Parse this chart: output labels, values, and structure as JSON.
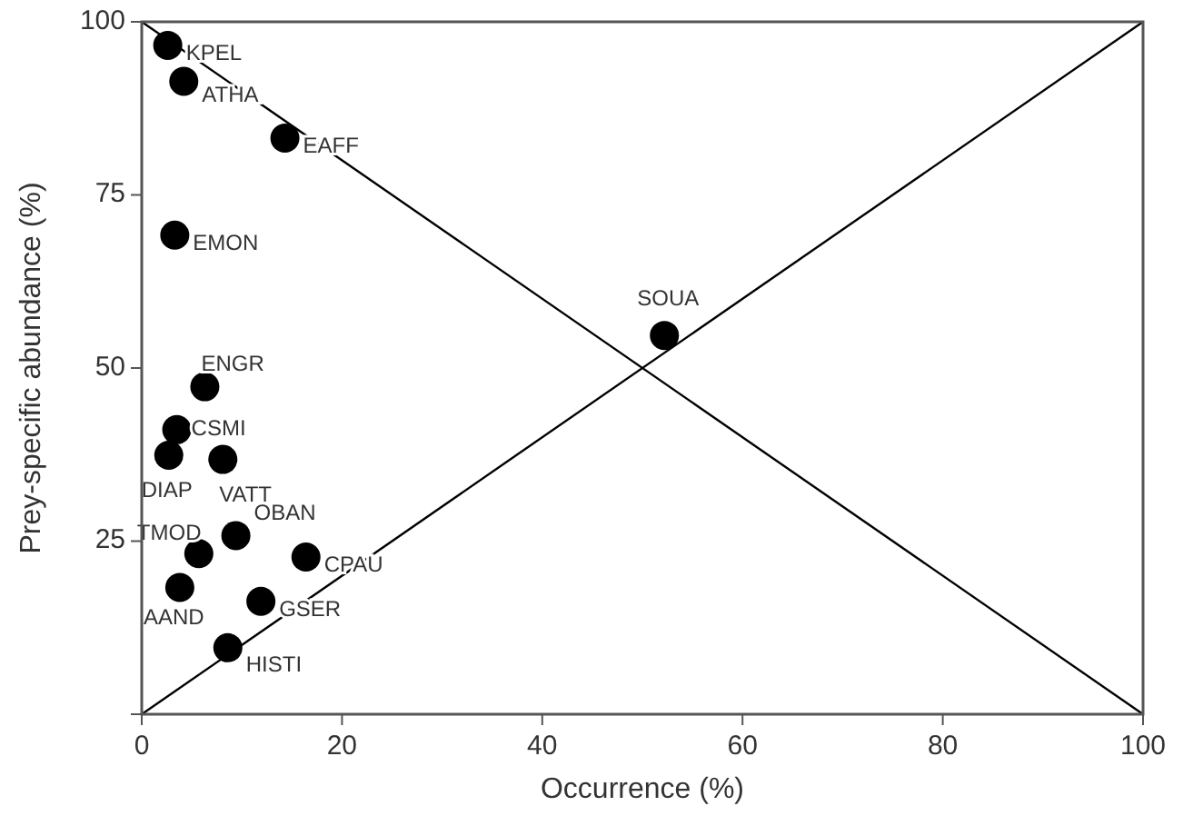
{
  "chart_data": {
    "type": "scatter",
    "xlabel": "Occurrence (%)",
    "ylabel": "Prey-specific abundance (%)",
    "xlim": [
      0,
      100
    ],
    "ylim": [
      0,
      100
    ],
    "xticks": [
      0,
      20,
      40,
      60,
      80,
      100
    ],
    "yticks": [
      {
        "value": 0,
        "label": null
      },
      25,
      50,
      75,
      100
    ],
    "grid": false,
    "marker": "circle",
    "series": [
      {
        "name": "KPEL",
        "color": "#000000",
        "x": [
          2.6
        ],
        "values": [
          96.6
        ]
      },
      {
        "name": "ATHA",
        "color": "#000000",
        "x": [
          4.2
        ],
        "values": [
          91.4
        ]
      },
      {
        "name": "EAFF",
        "color": "#000000",
        "x": [
          14.3
        ],
        "values": [
          83.2
        ]
      },
      {
        "name": "EMON",
        "color": "#000000",
        "x": [
          3.3
        ],
        "values": [
          69.2
        ]
      },
      {
        "name": "ENGR",
        "color": "#000000",
        "x": [
          6.3
        ],
        "values": [
          47.3
        ]
      },
      {
        "name": "CSMI",
        "color": "#000000",
        "x": [
          3.5
        ],
        "values": [
          41.1
        ]
      },
      {
        "name": "DIAP",
        "color": "#000000",
        "x": [
          2.7
        ],
        "values": [
          37.4
        ]
      },
      {
        "name": "VATT",
        "color": "#000000",
        "x": [
          8.1
        ],
        "values": [
          36.8
        ]
      },
      {
        "name": "OBAN",
        "color": "#000000",
        "x": [
          9.4
        ],
        "values": [
          25.8
        ]
      },
      {
        "name": "TMOD",
        "color": "#000000",
        "x": [
          5.7
        ],
        "values": [
          23.2
        ]
      },
      {
        "name": "CPAU",
        "color": "#000000",
        "x": [
          16.4
        ],
        "values": [
          22.7
        ]
      },
      {
        "name": "AAND",
        "color": "#000000",
        "x": [
          3.8
        ],
        "values": [
          18.3
        ]
      },
      {
        "name": "GSER",
        "color": "#000000",
        "x": [
          11.9
        ],
        "values": [
          16.3
        ]
      },
      {
        "name": "HISTI",
        "color": "#000000",
        "x": [
          8.6
        ],
        "values": [
          9.6
        ]
      },
      {
        "name": "SOUA",
        "color": "#000000",
        "x": [
          52.2
        ],
        "values": [
          54.7
        ]
      },
      {
        "type": "line",
        "color": "#000000",
        "x": [
          0,
          100
        ],
        "values": [
          100,
          0
        ],
        "marker": "none",
        "line_style": "solid"
      },
      {
        "type": "line",
        "color": "#000000",
        "x": [
          0,
          100
        ],
        "values": [
          0,
          100
        ],
        "marker": "none",
        "line_style": "solid"
      }
    ]
  }
}
